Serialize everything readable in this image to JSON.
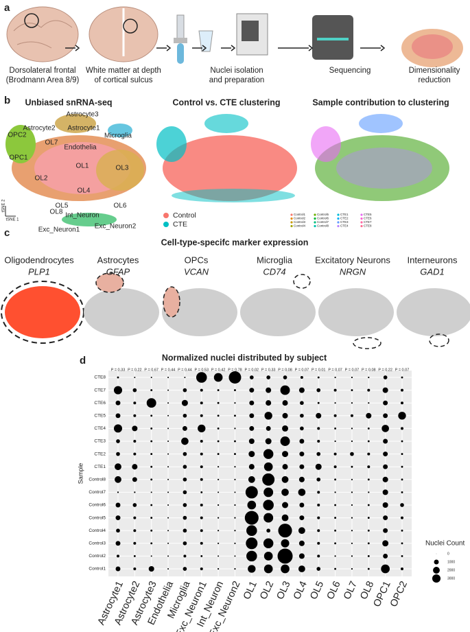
{
  "panel_a": {
    "label": "a",
    "steps": [
      [
        "Dorsolateral frontal",
        "(Brodmann Area 8/9)"
      ],
      [
        "White matter at depth",
        "of cortical sulcus"
      ],
      [
        "Nuclei isolation",
        "and preparation"
      ],
      [
        "Sequencing"
      ],
      [
        "Dimensionality",
        "reduction"
      ]
    ]
  },
  "panel_b": {
    "label": "b",
    "titles": [
      "Unbiased snRNA-seq",
      "Control vs. CTE clustering",
      "Sample contribution to clustering"
    ],
    "clusters": [
      "Astrocyte3",
      "Astrocyte2",
      "Astrocyte1",
      "OPC2",
      "OL7",
      "Microglia",
      "Endothelia",
      "OPC1",
      "OL1",
      "OL3",
      "OL2",
      "OL4",
      "OL5",
      "OL6",
      "Int_Neuron",
      "OL8",
      "Exc_Neuron2",
      "Exc_Neuron1"
    ],
    "axis_labels": [
      "tSNE 2",
      "tSNE 1"
    ],
    "legend": [
      {
        "name": "Control",
        "color": "#f8766d"
      },
      {
        "name": "CTE",
        "color": "#00bfc4"
      }
    ],
    "sample_legend": [
      {
        "name": "Control1",
        "color": "#f8766d"
      },
      {
        "name": "Control2",
        "color": "#e58700"
      },
      {
        "name": "Control3",
        "color": "#c99800"
      },
      {
        "name": "Control4",
        "color": "#a3a500"
      },
      {
        "name": "Control5",
        "color": "#6bb100"
      },
      {
        "name": "Control6",
        "color": "#00ba38"
      },
      {
        "name": "Control7",
        "color": "#00bf7d"
      },
      {
        "name": "Control8",
        "color": "#00c0af"
      },
      {
        "name": "CTE1",
        "color": "#00bcd8"
      },
      {
        "name": "CTE2",
        "color": "#00b0f6"
      },
      {
        "name": "CTE3",
        "color": "#619cff"
      },
      {
        "name": "CTE4",
        "color": "#b983ff"
      },
      {
        "name": "CTE5",
        "color": "#e76bf3"
      },
      {
        "name": "CTE6",
        "color": "#fd61d1"
      },
      {
        "name": "CTE7",
        "color": "#ff67a4"
      },
      {
        "name": "CTE8",
        "color": "#ff6c91"
      }
    ]
  },
  "panel_c": {
    "label": "c",
    "title": "Cell-type-specifc marker expression",
    "markers": [
      {
        "cell": "Oligodendrocytes",
        "gene": "PLP1"
      },
      {
        "cell": "Astrocytes",
        "gene": "GFAP"
      },
      {
        "cell": "OPCs",
        "gene": "VCAN"
      },
      {
        "cell": "Microglia",
        "gene": "CD74"
      },
      {
        "cell": "Excitatory Neurons",
        "gene": "NRGN"
      },
      {
        "cell": "Interneurons",
        "gene": "GAD1"
      }
    ]
  },
  "chart_data": {
    "type": "bubble",
    "label": "d",
    "title": "Normalized nuclei distributed by subject",
    "y_label": "Sample",
    "color": "#000000",
    "categories": [
      "Astrocyte1",
      "Astrocyte2",
      "Astrocyte3",
      "Endothelia",
      "Microglia",
      "Exc_Neuron1",
      "Int_Neuron",
      "Exc_Neuron2",
      "OL1",
      "OL2",
      "OL3",
      "OL4",
      "OL5",
      "OL6",
      "OL7",
      "OL8",
      "OPC1",
      "OPC2"
    ],
    "p_value_labels": [
      "P = 0.33",
      "P = 0.22",
      "P = 0.67",
      "P = 0.44",
      "P = 0.44",
      "P = 0.53",
      "P = 0.42",
      "P = 0.78",
      "P = 0.02",
      "P = 0.33",
      "P = 0.08",
      "P = 0.07",
      "P = 0.01",
      "P = 0.07",
      "P = 0.07",
      "P = 0.08",
      "P = 0.22",
      "P = 0.07"
    ],
    "series": [
      {
        "name": "CTE8",
        "values": [
          50,
          20,
          20,
          10,
          20,
          1500,
          1000,
          2000,
          200,
          200,
          200,
          100,
          50,
          30,
          30,
          30,
          200,
          50
        ]
      },
      {
        "name": "CTE7",
        "values": [
          900,
          200,
          50,
          10,
          200,
          100,
          50,
          50,
          300,
          400,
          1200,
          400,
          200,
          100,
          50,
          100,
          400,
          100
        ]
      },
      {
        "name": "CTE6",
        "values": [
          300,
          100,
          1200,
          10,
          500,
          100,
          50,
          30,
          300,
          400,
          400,
          200,
          50,
          30,
          30,
          30,
          300,
          100
        ]
      },
      {
        "name": "CTE5",
        "values": [
          300,
          100,
          50,
          10,
          200,
          100,
          50,
          50,
          300,
          800,
          400,
          200,
          400,
          100,
          100,
          400,
          300,
          800
        ]
      },
      {
        "name": "CTE4",
        "values": [
          900,
          400,
          50,
          10,
          300,
          800,
          50,
          30,
          300,
          300,
          500,
          200,
          100,
          50,
          30,
          50,
          700,
          100
        ]
      },
      {
        "name": "CTE3",
        "values": [
          200,
          100,
          50,
          10,
          700,
          100,
          50,
          50,
          400,
          500,
          1200,
          300,
          100,
          30,
          30,
          50,
          300,
          50
        ]
      },
      {
        "name": "CTE2",
        "values": [
          200,
          100,
          50,
          10,
          200,
          100,
          50,
          50,
          500,
          1300,
          500,
          300,
          200,
          100,
          200,
          100,
          300,
          50
        ]
      },
      {
        "name": "CTE1",
        "values": [
          600,
          400,
          50,
          10,
          200,
          100,
          30,
          30,
          400,
          1000,
          400,
          300,
          500,
          100,
          50,
          100,
          300,
          50
        ]
      },
      {
        "name": "Control8",
        "values": [
          600,
          300,
          50,
          10,
          200,
          100,
          30,
          30,
          600,
          2000,
          600,
          400,
          200,
          50,
          30,
          50,
          400,
          50
        ]
      },
      {
        "name": "Control7",
        "values": [
          30,
          30,
          20,
          10,
          200,
          50,
          20,
          20,
          2000,
          1200,
          700,
          700,
          100,
          30,
          30,
          30,
          400,
          50
        ]
      },
      {
        "name": "Control6",
        "values": [
          300,
          200,
          50,
          10,
          200,
          100,
          30,
          30,
          1000,
          1500,
          500,
          300,
          100,
          50,
          30,
          50,
          400,
          200
        ]
      },
      {
        "name": "Control5",
        "values": [
          300,
          100,
          50,
          10,
          200,
          100,
          30,
          30,
          2500,
          1200,
          600,
          300,
          100,
          50,
          30,
          50,
          300,
          100
        ]
      },
      {
        "name": "Control4",
        "values": [
          200,
          100,
          50,
          10,
          200,
          100,
          30,
          30,
          1500,
          200,
          2500,
          600,
          100,
          50,
          30,
          50,
          300,
          50
        ]
      },
      {
        "name": "Control3",
        "values": [
          300,
          100,
          50,
          10,
          200,
          100,
          30,
          30,
          1800,
          1300,
          900,
          400,
          100,
          50,
          30,
          50,
          500,
          50
        ]
      },
      {
        "name": "Control2",
        "values": [
          100,
          50,
          20,
          10,
          100,
          50,
          20,
          20,
          1500,
          1000,
          3000,
          400,
          100,
          30,
          30,
          50,
          300,
          50
        ]
      },
      {
        "name": "Control1",
        "values": [
          300,
          100,
          400,
          10,
          200,
          100,
          30,
          30,
          800,
          1000,
          1000,
          600,
          200,
          50,
          30,
          50,
          1000,
          100
        ]
      }
    ],
    "size_legend": {
      "title": "Nuclei Count",
      "values": [
        0,
        1000,
        2000,
        3000
      ]
    }
  }
}
